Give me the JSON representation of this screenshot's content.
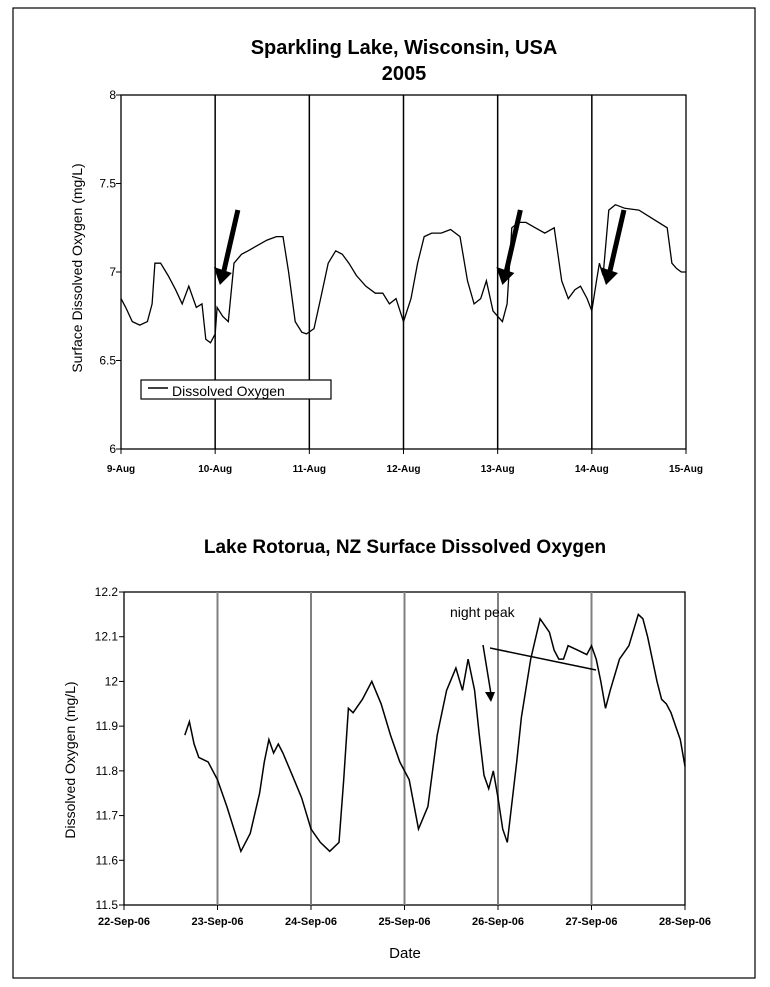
{
  "chart_data": [
    {
      "type": "line",
      "title": "Sparkling Lake, Wisconsin, USA",
      "subtitle": "2005",
      "xlabel": "",
      "ylabel": "Surface Dissolved Oxygen (mg/L)",
      "x_tick_labels": [
        "9-Aug",
        "10-Aug",
        "11-Aug",
        "12-Aug",
        "13-Aug",
        "14-Aug",
        "15-Aug"
      ],
      "y_tick_labels": [
        "6",
        "6.5",
        "7",
        "7.5",
        "8"
      ],
      "xlim": [
        0,
        6
      ],
      "ylim": [
        6,
        8
      ],
      "vertical_gridlines_at": [
        1,
        2,
        3,
        4,
        5
      ],
      "legend": {
        "placement": "bottom-left",
        "label": "Dissolved Oxygen"
      },
      "annotations": [
        {
          "type": "arrow",
          "at_day": 1.05,
          "label": ""
        },
        {
          "type": "arrow",
          "at_day": 4.05,
          "label": ""
        },
        {
          "type": "arrow",
          "at_day": 5.15,
          "label": ""
        }
      ],
      "series": [
        {
          "name": "Dissolved Oxygen",
          "x_unit": "days since 9-Aug",
          "x": [
            0,
            0.05,
            0.12,
            0.2,
            0.28,
            0.33,
            0.36,
            0.42,
            0.5,
            0.58,
            0.65,
            0.72,
            0.8,
            0.86,
            0.9,
            0.95,
            1.0,
            1.02,
            1.08,
            1.14,
            1.2,
            1.28,
            1.35,
            1.45,
            1.55,
            1.65,
            1.72,
            1.78,
            1.85,
            1.92,
            1.97,
            2.05,
            2.12,
            2.2,
            2.28,
            2.35,
            2.42,
            2.5,
            2.6,
            2.7,
            2.78,
            2.85,
            2.92,
            3.0,
            3.08,
            3.15,
            3.22,
            3.3,
            3.4,
            3.5,
            3.6,
            3.68,
            3.75,
            3.82,
            3.88,
            3.95,
            4.0,
            4.05,
            4.1,
            4.15,
            4.22,
            4.3,
            4.4,
            4.5,
            4.6,
            4.68,
            4.75,
            4.82,
            4.88,
            4.95,
            5.0,
            5.05,
            5.08,
            5.12,
            5.18,
            5.25,
            5.35,
            5.5,
            5.65,
            5.8,
            5.85,
            5.9,
            5.95,
            6.0
          ],
          "y": [
            6.85,
            6.8,
            6.72,
            6.7,
            6.72,
            6.82,
            7.05,
            7.05,
            6.98,
            6.9,
            6.82,
            6.92,
            6.8,
            6.82,
            6.62,
            6.6,
            6.65,
            6.8,
            6.75,
            6.72,
            7.05,
            7.1,
            7.12,
            7.15,
            7.18,
            7.2,
            7.2,
            7.0,
            6.72,
            6.66,
            6.65,
            6.68,
            6.85,
            7.05,
            7.12,
            7.1,
            7.05,
            6.98,
            6.92,
            6.88,
            6.88,
            6.82,
            6.85,
            6.72,
            6.85,
            7.05,
            7.2,
            7.22,
            7.22,
            7.24,
            7.2,
            6.95,
            6.82,
            6.85,
            6.95,
            6.78,
            6.75,
            6.72,
            6.82,
            7.25,
            7.28,
            7.28,
            7.25,
            7.22,
            7.25,
            6.95,
            6.85,
            6.9,
            6.92,
            6.85,
            6.78,
            6.95,
            7.05,
            6.98,
            7.35,
            7.38,
            7.36,
            7.35,
            7.3,
            7.25,
            7.05,
            7.02,
            7.0,
            7.0
          ]
        }
      ]
    },
    {
      "type": "line",
      "title": "Lake Rotorua, NZ Surface Dissolved Oxygen",
      "xlabel": "Date",
      "ylabel": "Dissolved Oxygen (mg/L)",
      "x_tick_labels": [
        "22-Sep-06",
        "23-Sep-06",
        "24-Sep-06",
        "25-Sep-06",
        "26-Sep-06",
        "27-Sep-06",
        "28-Sep-06"
      ],
      "y_tick_labels": [
        "11.5",
        "11.6",
        "11.7",
        "11.8",
        "11.9",
        "12",
        "12.1",
        "12.2"
      ],
      "xlim": [
        0,
        6
      ],
      "ylim": [
        11.5,
        12.2
      ],
      "vertical_gridlines_at": [
        1,
        2,
        3,
        4,
        5
      ],
      "annotations": [
        {
          "type": "text",
          "label": "night peak"
        },
        {
          "type": "arrow",
          "label": ""
        },
        {
          "type": "line",
          "label": ""
        }
      ],
      "series": [
        {
          "name": "",
          "x_unit": "days since 22-Sep-06",
          "x": [
            0.65,
            0.7,
            0.75,
            0.8,
            0.9,
            1.0,
            1.1,
            1.25,
            1.35,
            1.45,
            1.5,
            1.55,
            1.6,
            1.65,
            1.7,
            1.8,
            1.9,
            2.0,
            2.1,
            2.2,
            2.3,
            2.35,
            2.4,
            2.45,
            2.55,
            2.65,
            2.75,
            2.85,
            2.95,
            3.05,
            3.15,
            3.25,
            3.35,
            3.45,
            3.55,
            3.62,
            3.68,
            3.75,
            3.8,
            3.85,
            3.9,
            3.95,
            4.0,
            4.05,
            4.1,
            4.15,
            4.2,
            4.25,
            4.35,
            4.45,
            4.55,
            4.6,
            4.65,
            4.7,
            4.75,
            4.85,
            4.95,
            5.0,
            5.05,
            5.1,
            5.15,
            5.2,
            5.3,
            5.4,
            5.5,
            5.55,
            5.6,
            5.65,
            5.7,
            5.75,
            5.8,
            5.85,
            5.9,
            5.95,
            6.0
          ],
          "y": [
            11.88,
            11.91,
            11.86,
            11.83,
            11.82,
            11.78,
            11.72,
            11.62,
            11.66,
            11.75,
            11.82,
            11.87,
            11.84,
            11.86,
            11.84,
            11.79,
            11.74,
            11.67,
            11.64,
            11.62,
            11.64,
            11.78,
            11.94,
            11.93,
            11.96,
            12.0,
            11.95,
            11.88,
            11.82,
            11.78,
            11.67,
            11.72,
            11.88,
            11.98,
            12.03,
            11.98,
            12.05,
            11.98,
            11.88,
            11.79,
            11.76,
            11.8,
            11.74,
            11.67,
            11.64,
            11.73,
            11.82,
            11.92,
            12.05,
            12.14,
            12.11,
            12.07,
            12.05,
            12.05,
            12.08,
            12.07,
            12.06,
            12.08,
            12.05,
            12.0,
            11.94,
            11.98,
            12.05,
            12.08,
            12.15,
            12.14,
            12.1,
            12.05,
            12.0,
            11.96,
            11.95,
            11.93,
            11.9,
            11.87,
            11.81
          ]
        }
      ]
    }
  ]
}
